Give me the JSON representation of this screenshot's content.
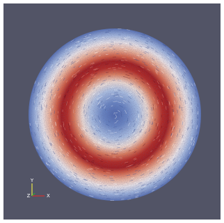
{
  "axes": {
    "x": "X",
    "y": "Y",
    "z": "Z"
  }
}
